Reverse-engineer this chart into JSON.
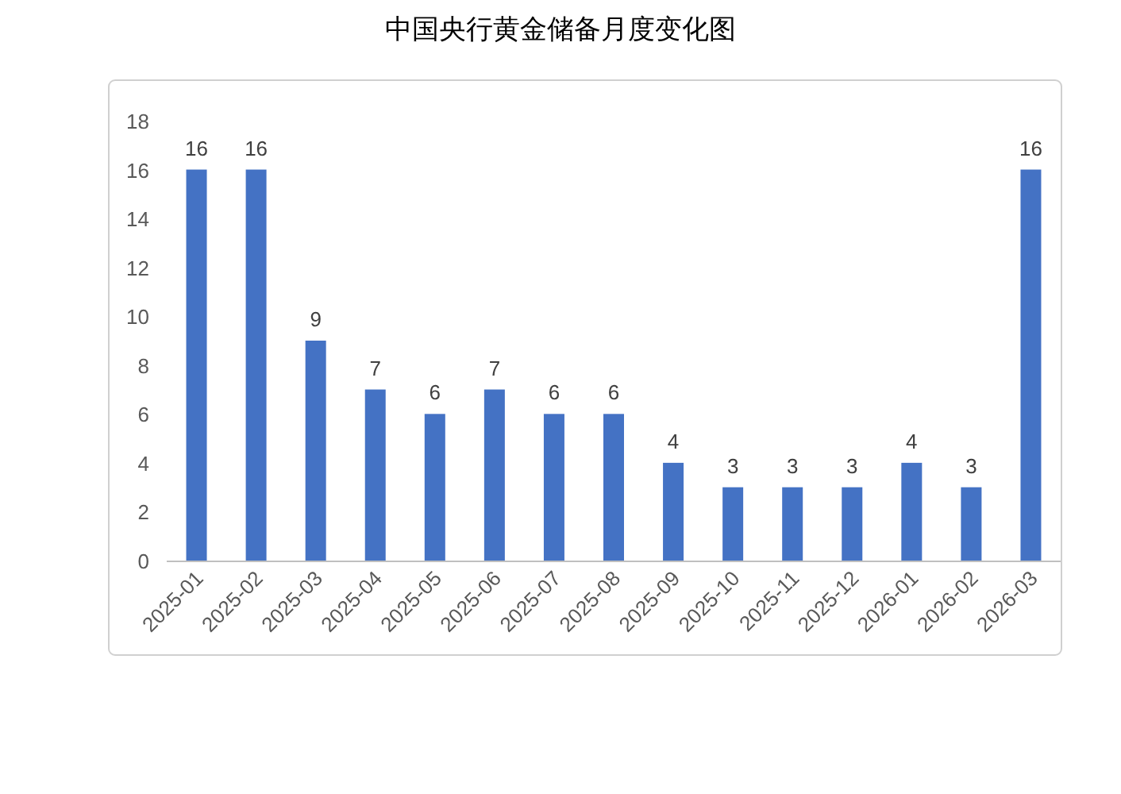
{
  "chart_data": {
    "type": "bar",
    "title": "中国央行黄金储备月度变化图",
    "categories": [
      "2025-01",
      "2025-02",
      "2025-03",
      "2025-04",
      "2025-05",
      "2025-06",
      "2025-07",
      "2025-08",
      "2025-09",
      "2025-10",
      "2025-11",
      "2025-12",
      "2026-01",
      "2026-02",
      "2026-03"
    ],
    "values": [
      16,
      16,
      9,
      7,
      6,
      7,
      6,
      6,
      4,
      3,
      3,
      3,
      4,
      3,
      16
    ],
    "color": "#4472c4",
    "ylim": [
      0,
      18
    ],
    "yticks": [
      0,
      2,
      4,
      6,
      8,
      10,
      12,
      14,
      16,
      18
    ],
    "data_labels": true,
    "grid": false
  }
}
